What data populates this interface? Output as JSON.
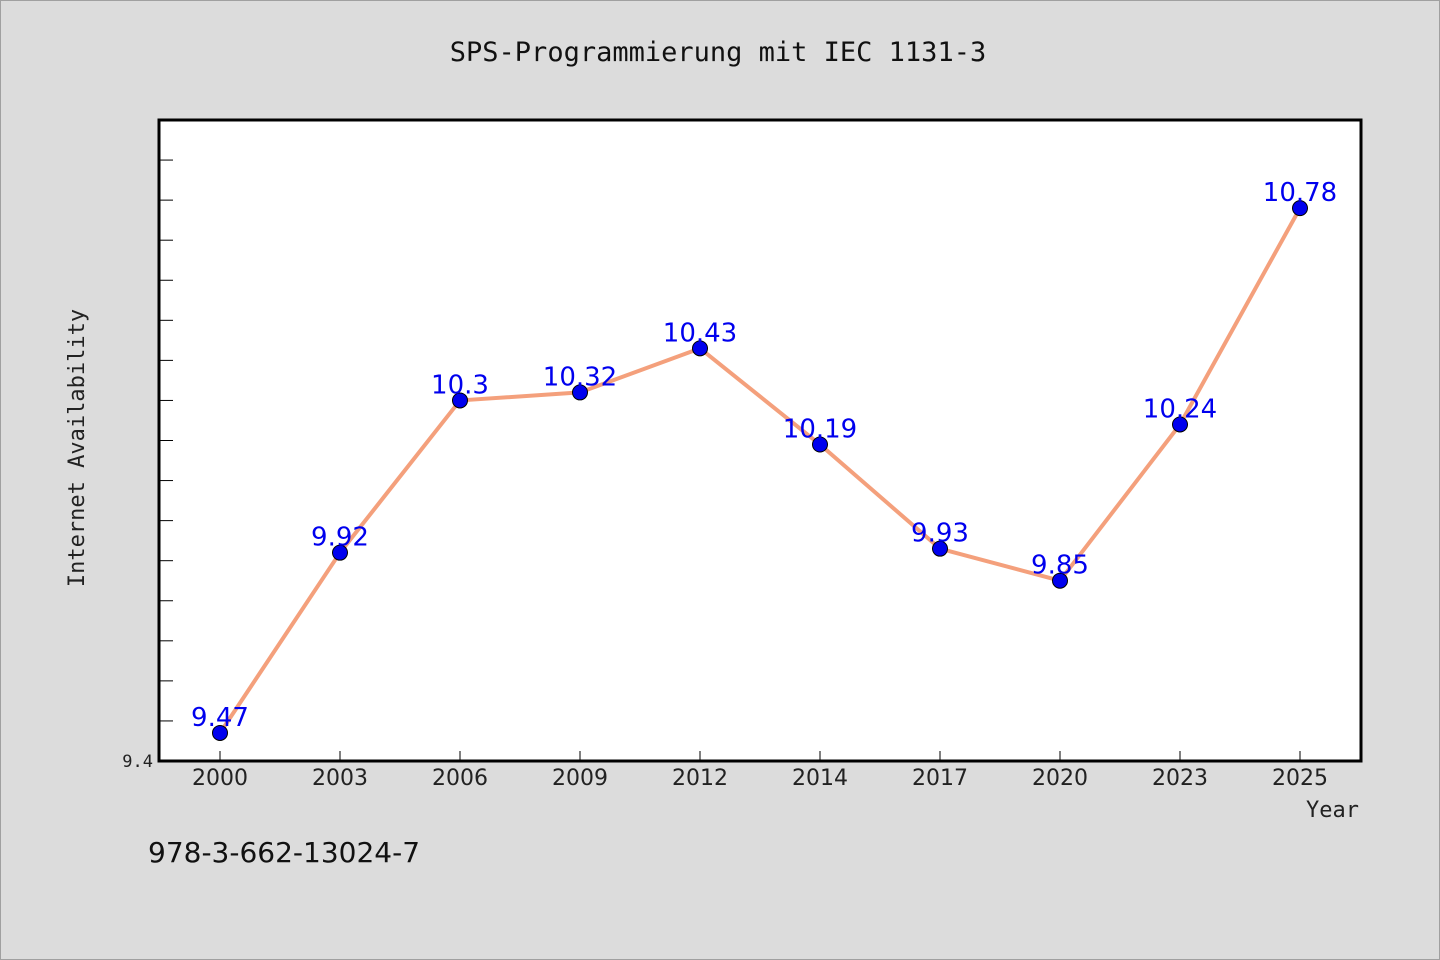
{
  "chart_data": {
    "type": "line",
    "title": "SPS-Programmierung mit IEC 1131-3",
    "xlabel": "Year",
    "ylabel": "Internet Availability",
    "categories": [
      "2000",
      "2003",
      "2006",
      "2009",
      "2012",
      "2014",
      "2017",
      "2020",
      "2023",
      "2025"
    ],
    "series": [
      {
        "values": [
          9.47,
          9.92,
          10.3,
          10.32,
          10.43,
          10.19,
          9.93,
          9.85,
          10.24,
          10.78
        ],
        "labels": [
          "9.47",
          "9.92",
          "10.3",
          "10.32",
          "10.43",
          "10.19",
          "9.93",
          "9.85",
          "10.24",
          "10.78"
        ]
      }
    ],
    "ylim": [
      9.4,
      11.0
    ],
    "ytick_labels": [
      "9.4"
    ],
    "ytick_step": 0.1,
    "grid": false,
    "line_color": "#f4a07c",
    "marker_color": "#0000ee",
    "label_color": "#0000ee"
  },
  "footer": {
    "code": "978-3-662-13024-7"
  },
  "colors": {
    "background": "#dcdcdc",
    "plot_background": "#ffffff",
    "frame": "#000000"
  }
}
